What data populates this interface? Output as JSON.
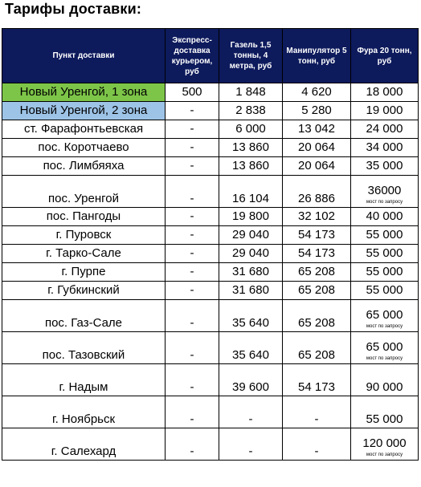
{
  "title": "Тарифы доставки:",
  "headers": [
    "Пункт доставки",
    "Экспресс-доставка курьером, руб",
    "Газель 1,5 тонны, 4 метра, руб",
    "Манипулятор 5 тонн, руб",
    "Фура 20 тонн, руб"
  ],
  "rows": [
    {
      "point": "Новый Уренгой, 1 зона",
      "express": "500",
      "gazel": "1 848",
      "manip": "4 620",
      "fura": "18 000",
      "fura_note": ""
    },
    {
      "point": "Новый Уренгой, 2 зона",
      "express": "-",
      "gazel": "2 838",
      "manip": "5 280",
      "fura": "19 000",
      "fura_note": ""
    },
    {
      "point": "ст. Фарафонтьевская",
      "express": "-",
      "gazel": "6 000",
      "manip": "13 042",
      "fura": "24 000",
      "fura_note": ""
    },
    {
      "point": "пос. Коротчаево",
      "express": "-",
      "gazel": "13 860",
      "manip": "20 064",
      "fura": "34 000",
      "fura_note": ""
    },
    {
      "point": "пос. Лимбяяха",
      "express": "-",
      "gazel": "13 860",
      "manip": "20 064",
      "fura": "35 000",
      "fura_note": ""
    },
    {
      "point": "пос. Уренгой",
      "express": "-",
      "gazel": "16 104",
      "manip": "26 886",
      "fura": "36000",
      "fura_note": "мост по запросу"
    },
    {
      "point": "пос. Пангоды",
      "express": "-",
      "gazel": "19 800",
      "manip": "32 102",
      "fura": "40 000",
      "fura_note": ""
    },
    {
      "point": "г. Пуровск",
      "express": "-",
      "gazel": "29 040",
      "manip": "54 173",
      "fura": "55 000",
      "fura_note": ""
    },
    {
      "point": "г. Тарко-Сале",
      "express": "-",
      "gazel": "29 040",
      "manip": "54 173",
      "fura": "55 000",
      "fura_note": ""
    },
    {
      "point": "г. Пурпе",
      "express": "-",
      "gazel": "31 680",
      "manip": "65 208",
      "fura": "55 000",
      "fura_note": ""
    },
    {
      "point": "г. Губкинский",
      "express": "-",
      "gazel": "31 680",
      "manip": "65 208",
      "fura": "55 000",
      "fura_note": ""
    },
    {
      "point": "пос. Газ-Сале",
      "express": "-",
      "gazel": "35 640",
      "manip": "65 208",
      "fura": "65 000",
      "fura_note": "мост по запросу"
    },
    {
      "point": "пос. Тазовский",
      "express": "-",
      "gazel": "35 640",
      "manip": "65 208",
      "fura": "65 000",
      "fura_note": "мост по запросу"
    },
    {
      "point": "г. Надым",
      "express": "-",
      "gazel": "39 600",
      "manip": "54 173",
      "fura": "90 000",
      "fura_note": ""
    },
    {
      "point": "г. Ноябрьск",
      "express": "-",
      "gazel": "-",
      "manip": "-",
      "fura": "55 000",
      "fura_note": ""
    },
    {
      "point": "г. Салехард",
      "express": "-",
      "gazel": "-",
      "manip": "-",
      "fura": "120 000",
      "fura_note": "мост по запросу"
    }
  ],
  "colors": {
    "header_bg": "#0d1a5c",
    "zone1_bg": "#7dc548",
    "zone2_bg": "#9dc3e6"
  }
}
